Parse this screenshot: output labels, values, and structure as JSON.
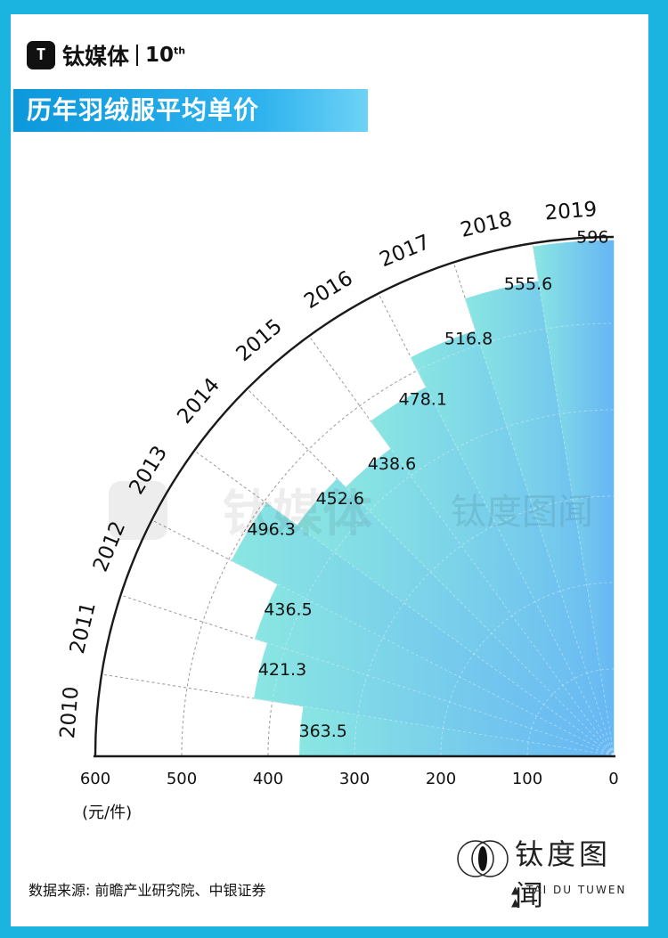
{
  "brand": {
    "name": "钛媒体",
    "ten": "10",
    "ten_sup": "th"
  },
  "title": "历年羽绒服平均单价",
  "unit": "(元/件)",
  "source": "数据来源: 前瞻产业研究院、中银证券",
  "watermark": {
    "name": "钛度图闻",
    "sub": "▲ TAI DU TUWEN ▲",
    "brand_faded": "钛媒体"
  },
  "colors": {
    "background": "#1bb3e0",
    "fill_start": "#8ae6e2",
    "fill_end": "#66b6f4",
    "text": "#111111"
  },
  "chart_data": {
    "type": "bar",
    "subtype": "radial-quarter",
    "categories": [
      "2010",
      "2011",
      "2012",
      "2013",
      "2014",
      "2015",
      "2016",
      "2017",
      "2018",
      "2019"
    ],
    "values": [
      363.5,
      421.3,
      436.5,
      496.3,
      452.6,
      438.6,
      478.1,
      516.8,
      555.6,
      596
    ],
    "value_labels": [
      "363.5",
      "421.3",
      "436.5",
      "496.3",
      "452.6",
      "438.6",
      "478.1",
      "516.8",
      "555.6",
      "596"
    ],
    "ticks": [
      600,
      500,
      400,
      300,
      200,
      100,
      0
    ],
    "tick_labels": [
      "600",
      "500",
      "400",
      "300",
      "200",
      "100",
      "0"
    ],
    "range": [
      0,
      600
    ],
    "grid": true
  }
}
